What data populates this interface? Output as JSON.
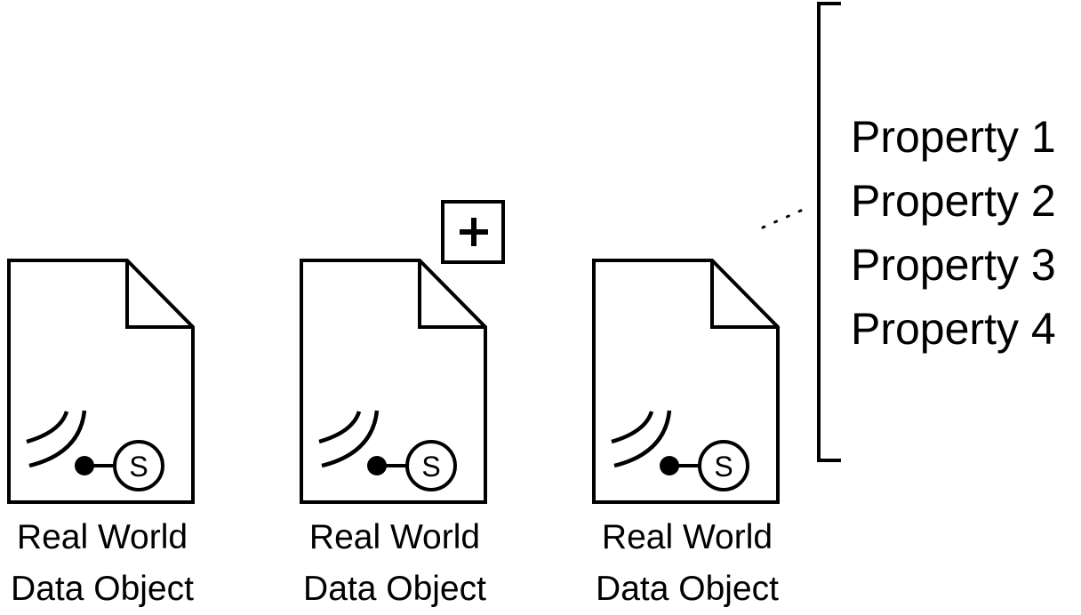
{
  "data_objects": [
    {
      "label_line1": "Real World",
      "label_line2": "Data Object",
      "sensor_symbol": "S",
      "collection_marker": false
    },
    {
      "label_line1": "Real World",
      "label_line2": "Data Object",
      "sensor_symbol": "S",
      "collection_marker": true
    },
    {
      "label_line1": "Real World",
      "label_line2": "Data Object",
      "sensor_symbol": "S",
      "collection_marker": false
    }
  ],
  "annotation": {
    "properties": [
      "Property 1",
      "Property 2",
      "Property 3",
      "Property 4"
    ]
  },
  "icons": [
    "document-icon",
    "sensor-signal-icon",
    "plus-icon",
    "bracket-icon"
  ],
  "colors": {
    "stroke": "#000000",
    "background": "#ffffff"
  }
}
